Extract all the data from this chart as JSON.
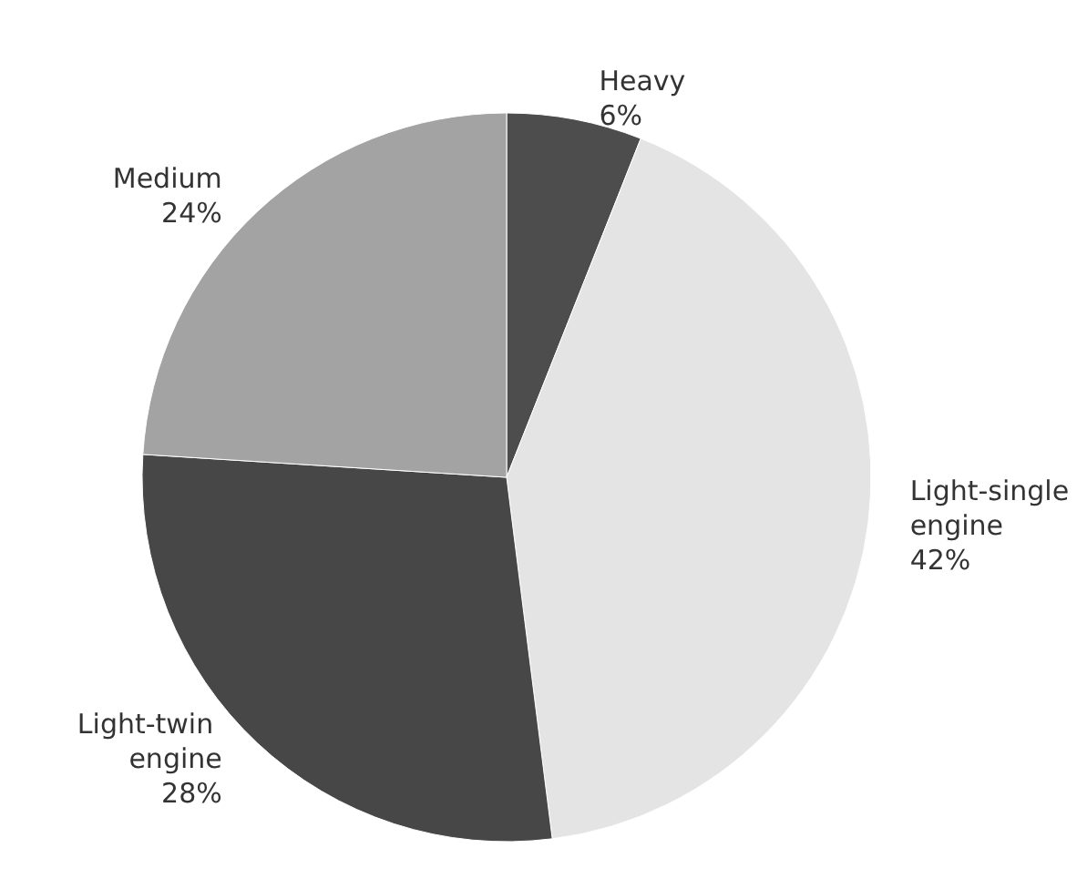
{
  "chart_data": {
    "type": "pie",
    "categories": [
      "Heavy",
      "Light-single engine",
      "Light-twin engine",
      "Medium"
    ],
    "values": [
      6,
      42,
      28,
      24
    ],
    "colors": [
      "#4d4d4d",
      "#e4e4e4",
      "#474747",
      "#a3a3a3"
    ],
    "value_labels": [
      "6%",
      "42%",
      "28%",
      "24%"
    ],
    "legend": false
  }
}
